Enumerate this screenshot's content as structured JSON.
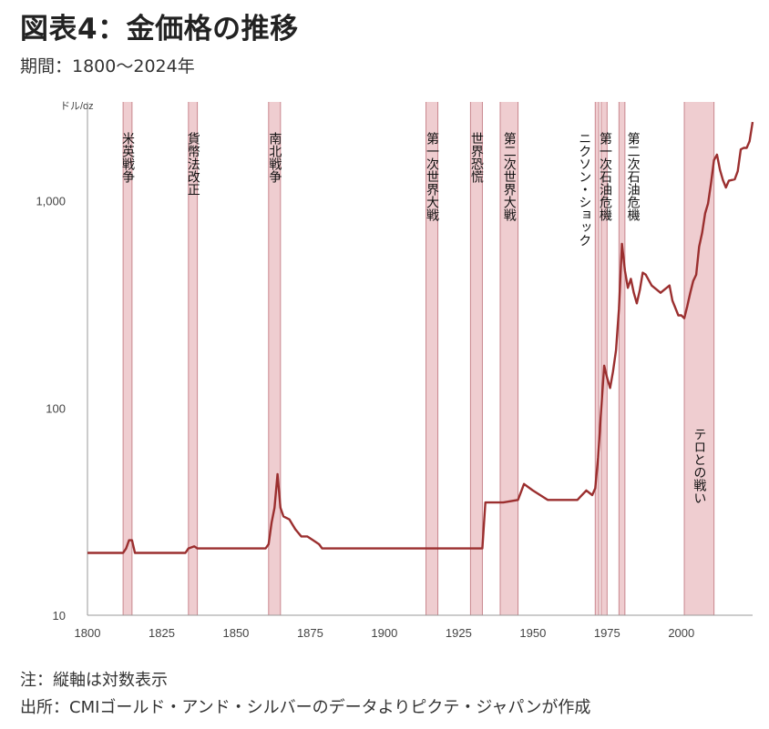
{
  "title": "図表4：金価格の推移",
  "subtitle": "期間：1800～2024年",
  "notes": {
    "note1": "注：縦軸は対数表示",
    "note2": "出所：CMIゴールド・アンド・シルバーのデータよりピクテ・ジャパンが作成"
  },
  "chart_data": {
    "type": "line",
    "y_scale": "log",
    "ylabel": "ドル/oz",
    "xlim": [
      1800,
      2024
    ],
    "ylim": [
      10,
      3000
    ],
    "x_ticks": [
      1800,
      1825,
      1850,
      1875,
      1900,
      1925,
      1950,
      1975,
      2000
    ],
    "y_ticks": [
      10,
      100,
      1000
    ],
    "y_tick_labels": [
      "10",
      "100",
      "1,000"
    ],
    "line_color": "#9b2f2f",
    "band_color": "#efcdd0",
    "events": [
      {
        "label": "米英戦争",
        "start": 1812,
        "end": 1815
      },
      {
        "label": "貨幣法改正",
        "start": 1834,
        "end": 1837
      },
      {
        "label": "南北戦争",
        "start": 1861,
        "end": 1865
      },
      {
        "label": "第一次世界大戦",
        "start": 1914,
        "end": 1918
      },
      {
        "label": "世界恐慌",
        "start": 1929,
        "end": 1933
      },
      {
        "label": "第二次世界大戦",
        "start": 1939,
        "end": 1945
      },
      {
        "label": "ニクソン・ショック",
        "start": 1971,
        "end": 1972
      },
      {
        "label": "第一次石油危機",
        "start": 1973,
        "end": 1975
      },
      {
        "label": "第二次石油危機",
        "start": 1979,
        "end": 1981
      },
      {
        "label": "テロとの戦い",
        "start": 2001,
        "end": 2011
      }
    ],
    "series": [
      {
        "x": [
          1800,
          1812,
          1813,
          1814,
          1815,
          1816,
          1833,
          1834,
          1836,
          1837,
          1850,
          1860,
          1861,
          1862,
          1863,
          1864,
          1865,
          1866,
          1868,
          1870,
          1872,
          1874,
          1876,
          1878,
          1879,
          1880,
          1900,
          1920,
          1930,
          1933,
          1934,
          1940,
          1945,
          1947,
          1950,
          1955,
          1960,
          1965,
          1968,
          1970,
          1971,
          1972,
          1973,
          1974,
          1975,
          1976,
          1977,
          1978,
          1979,
          1980,
          1981,
          1982,
          1983,
          1984,
          1985,
          1986,
          1987,
          1988,
          1990,
          1993,
          1996,
          1997,
          1999,
          2000,
          2001,
          2002,
          2003,
          2004,
          2005,
          2006,
          2007,
          2008,
          2009,
          2010,
          2011,
          2012,
          2013,
          2014,
          2015,
          2016,
          2017,
          2018,
          2019,
          2020,
          2021,
          2022,
          2023,
          2024
        ],
        "y": [
          20,
          20,
          21,
          23,
          23,
          20,
          20,
          21,
          21.5,
          21,
          21,
          21,
          22,
          28,
          33,
          48,
          33,
          30,
          29,
          26,
          24,
          24,
          23,
          22,
          21,
          21,
          21,
          21,
          21,
          21,
          35,
          35,
          36,
          43,
          40,
          36,
          36,
          36,
          40,
          38,
          41,
          58,
          98,
          160,
          140,
          125,
          150,
          190,
          300,
          620,
          460,
          380,
          420,
          360,
          320,
          370,
          450,
          440,
          390,
          360,
          390,
          330,
          280,
          280,
          271,
          310,
          360,
          410,
          440,
          600,
          700,
          870,
          970,
          1220,
          1570,
          1670,
          1410,
          1260,
          1160,
          1250,
          1260,
          1270,
          1390,
          1770,
          1800,
          1800,
          1940,
          2400
        ]
      }
    ]
  }
}
